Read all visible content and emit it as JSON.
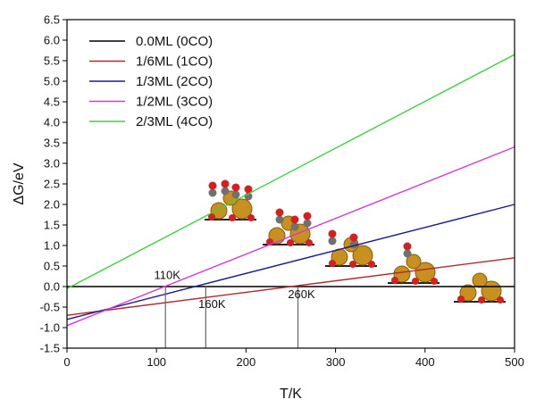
{
  "chart_data": {
    "type": "line",
    "title": "",
    "xlabel": "T/K",
    "ylabel": "ΔG/eV",
    "xlim": [
      0,
      500
    ],
    "ylim": [
      -1.5,
      6.5
    ],
    "x_ticks": [
      0,
      100,
      200,
      300,
      400,
      500
    ],
    "y_ticks": [
      -1.5,
      -1.0,
      -0.5,
      0.0,
      0.5,
      1.0,
      1.5,
      2.0,
      2.5,
      3.0,
      3.5,
      4.0,
      4.5,
      5.0,
      5.5,
      6.0,
      6.5
    ],
    "grid": false,
    "legend_position": "top-left",
    "series": [
      {
        "name": "0.0ML (0CO)",
        "color": "#000000",
        "x": [
          0,
          500
        ],
        "y": [
          0.0,
          0.0
        ]
      },
      {
        "name": "1/6ML (1CO)",
        "color": "#b02a2a",
        "x": [
          0,
          500
        ],
        "y": [
          -0.7,
          0.7
        ]
      },
      {
        "name": "1/3ML (2CO)",
        "color": "#1a1a8c",
        "x": [
          0,
          500
        ],
        "y": [
          -0.8,
          2.0
        ]
      },
      {
        "name": "1/2ML (3CO)",
        "color": "#d23ad2",
        "x": [
          0,
          500
        ],
        "y": [
          -0.95,
          3.4
        ]
      },
      {
        "name": "2/3ML (4CO)",
        "color": "#3ed23e",
        "x": [
          0,
          500
        ],
        "y": [
          -0.05,
          5.65
        ]
      }
    ],
    "annotations": [
      {
        "text": "110K",
        "x": 110,
        "y": 0.18
      },
      {
        "text": "160K",
        "x": 160,
        "y": -0.52
      },
      {
        "text": "260K",
        "x": 260,
        "y": -0.28
      }
    ],
    "vertical_markers": [
      {
        "x": 110,
        "y_from": -1.5,
        "y_to": 0.0
      },
      {
        "x": 155,
        "y_from": -1.5,
        "y_to": 0.0
      },
      {
        "x": 258,
        "y_from": -1.5,
        "y_to": 0.0
      }
    ]
  }
}
